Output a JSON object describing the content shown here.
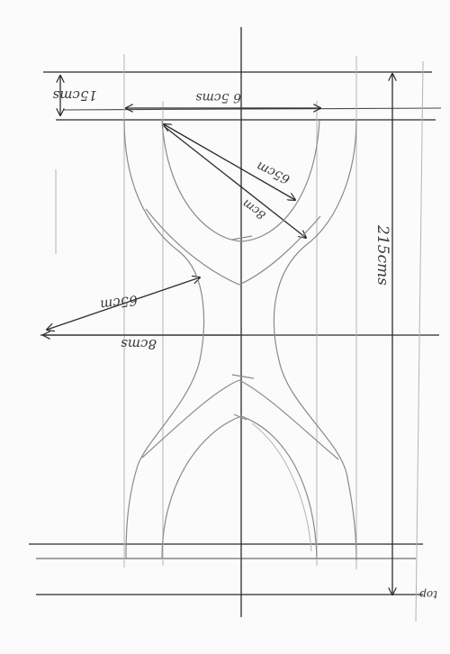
{
  "sketch": {
    "labels": {
      "top_band": "15cms",
      "top_width": "6 5cms",
      "radius_upper": "65cm",
      "inner_radius": "8cm",
      "radius_left": "65cm",
      "half_width": "8cms",
      "total_height": "215cms",
      "corner_word": "top"
    }
  }
}
